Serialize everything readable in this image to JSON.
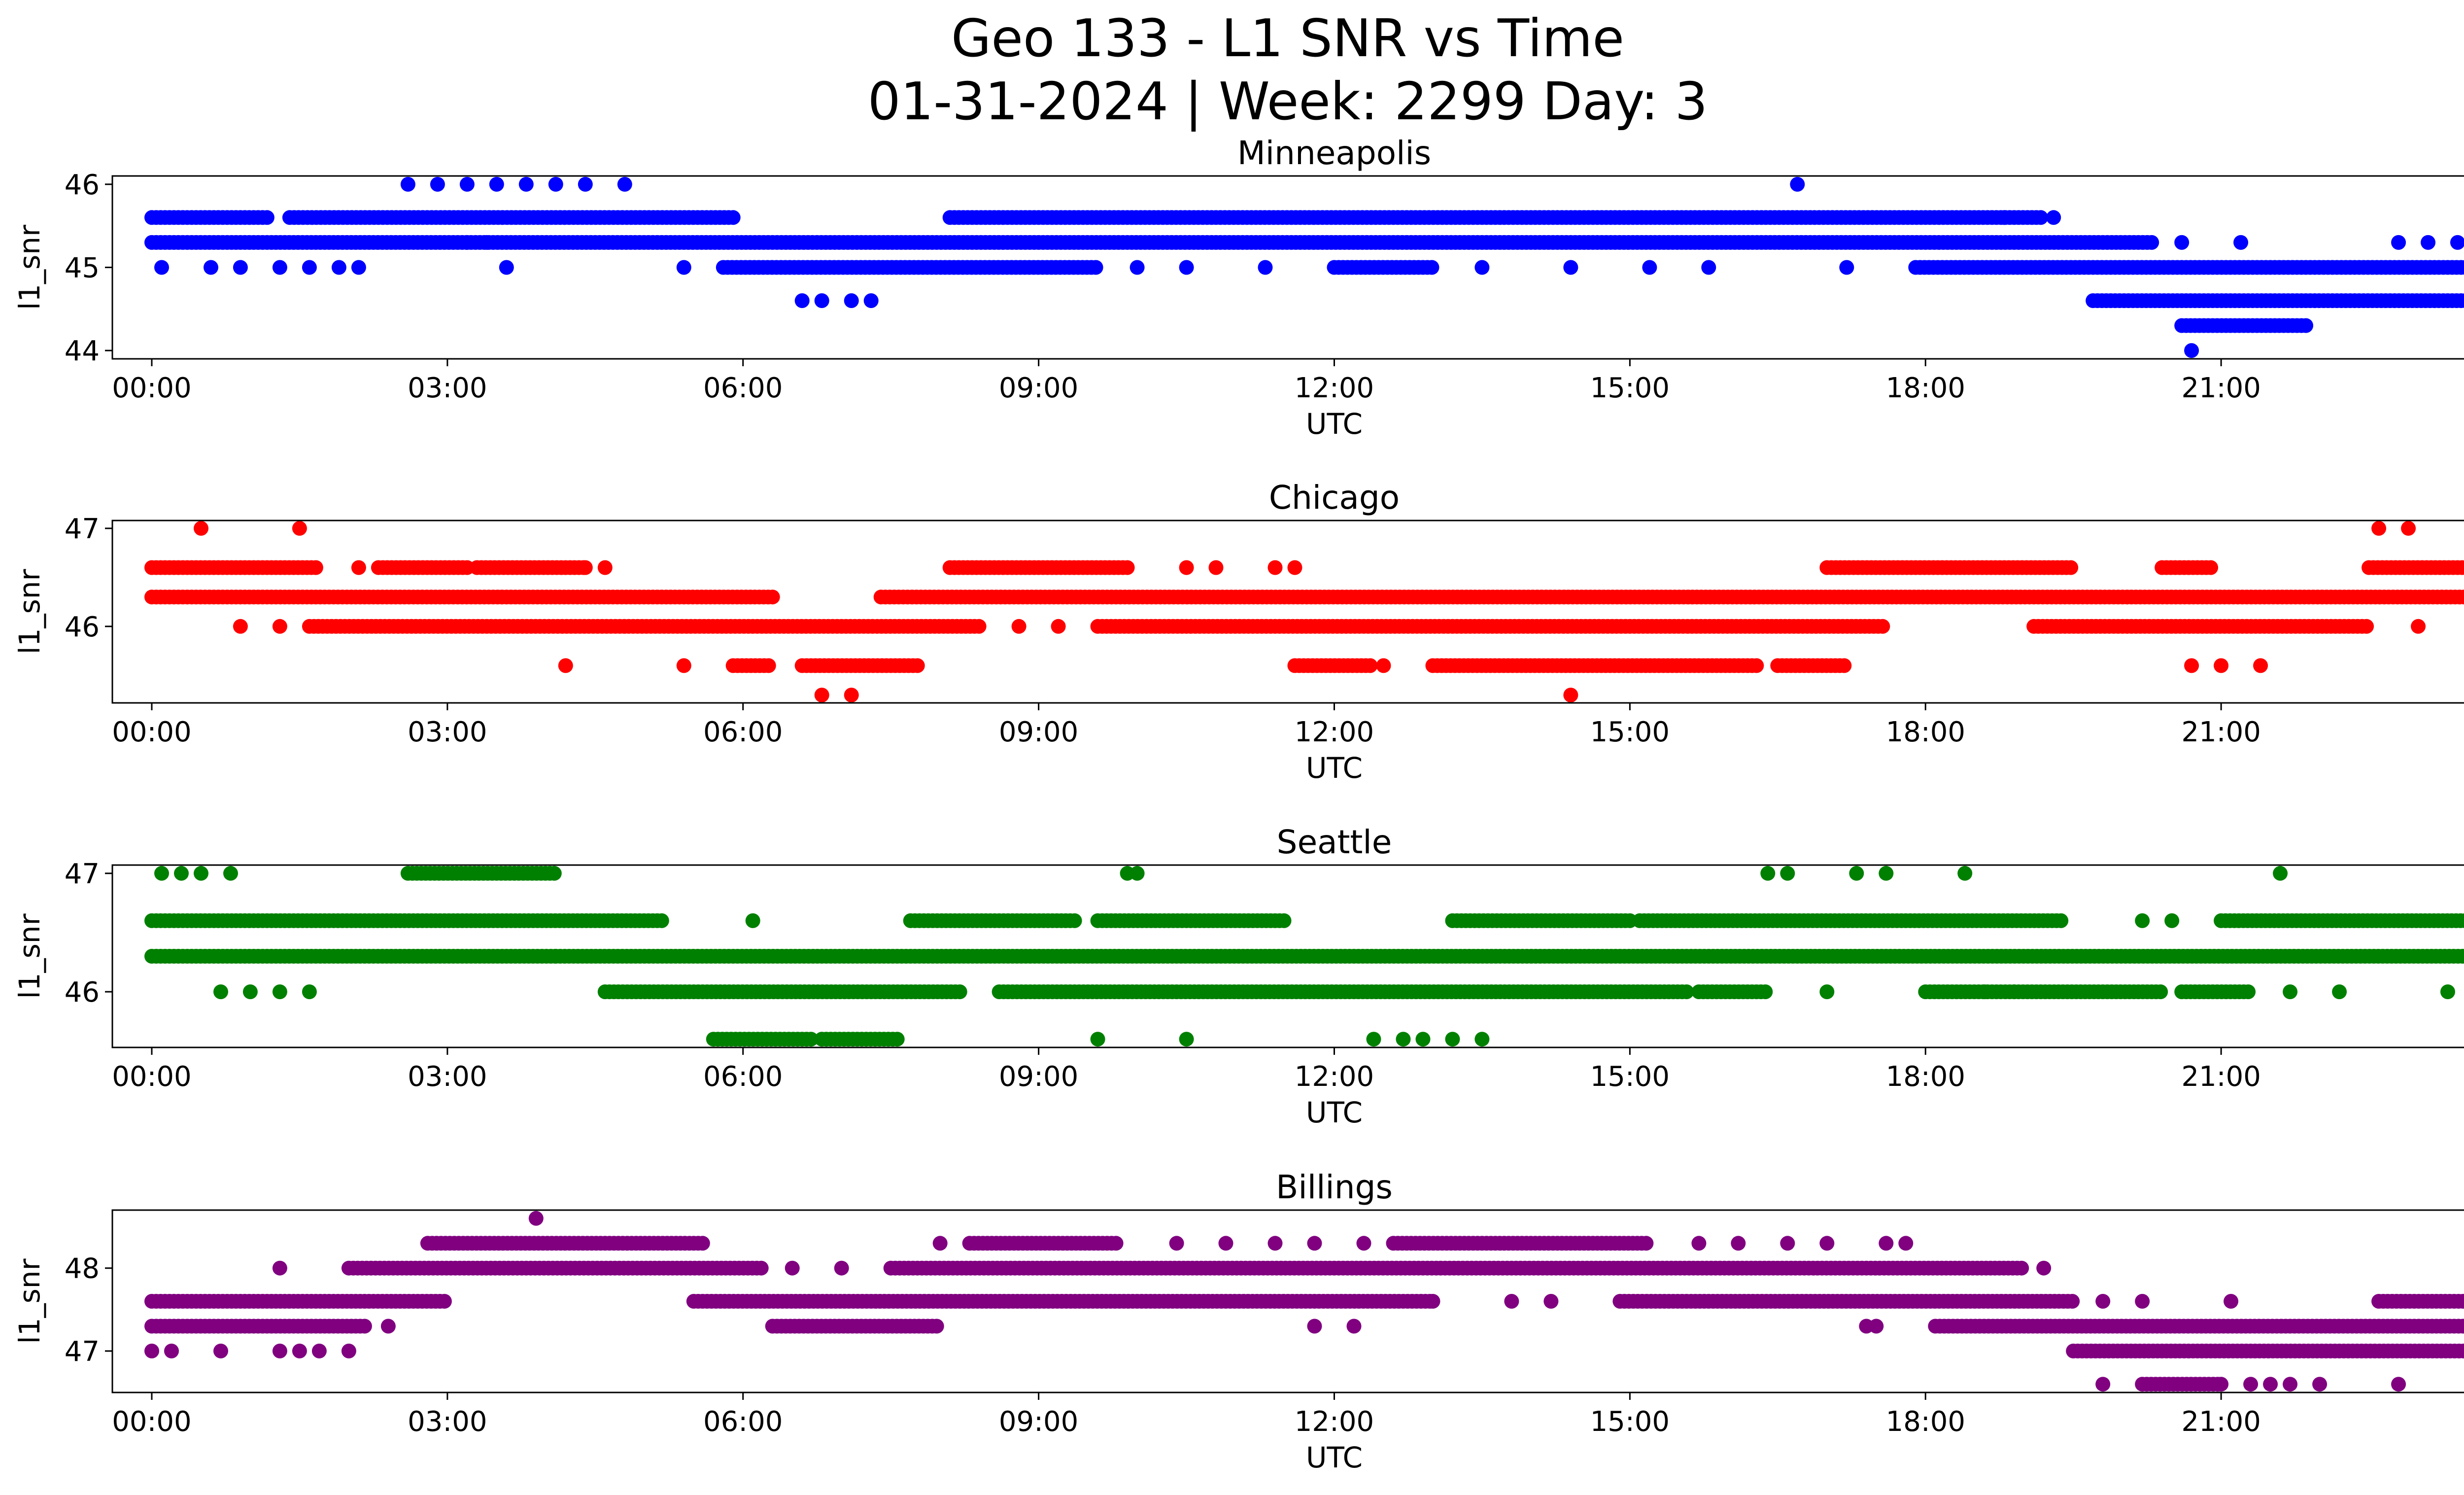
{
  "title": {
    "line1": "Geo 133 - L1 SNR vs Time",
    "line2": "01-31-2024 | Week: 2299 Day: 3"
  },
  "chart_data": [
    {
      "type": "scatter",
      "title": "Minneapolis",
      "xlabel": "UTC",
      "ylabel": "l1_snr",
      "color": "#0000ff",
      "xlim": [
        -0.4,
        24.4
      ],
      "ylim": [
        43.9,
        46.1
      ],
      "yticks": [
        44,
        45,
        46
      ],
      "xticks": [
        "00:00",
        "03:00",
        "06:00",
        "09:00",
        "12:00",
        "15:00",
        "18:00",
        "21:00",
        "00:00"
      ],
      "dense_runs": [
        {
          "y": 45.6,
          "ranges": [
            [
              0.0,
              1.2
            ],
            [
              1.4,
              5.9
            ],
            [
              8.1,
              19.2
            ]
          ]
        },
        {
          "y": 45.3,
          "ranges": [
            [
              0.0,
              20.3
            ]
          ]
        },
        {
          "y": 45.0,
          "ranges": [
            [
              5.8,
              9.6
            ],
            [
              12.0,
              13.0
            ],
            [
              17.9,
              24.0
            ]
          ]
        },
        {
          "y": 44.6,
          "ranges": [
            [
              19.7,
              24.0
            ]
          ]
        },
        {
          "y": 44.3,
          "ranges": [
            [
              20.6,
              21.9
            ]
          ]
        }
      ],
      "points": [
        {
          "x": 2.6,
          "y": 46.0
        },
        {
          "x": 2.9,
          "y": 46.0
        },
        {
          "x": 3.2,
          "y": 46.0
        },
        {
          "x": 3.5,
          "y": 46.0
        },
        {
          "x": 3.8,
          "y": 46.0
        },
        {
          "x": 4.1,
          "y": 46.0
        },
        {
          "x": 4.4,
          "y": 46.0
        },
        {
          "x": 4.8,
          "y": 46.0
        },
        {
          "x": 16.7,
          "y": 46.0
        },
        {
          "x": 0.1,
          "y": 45.0
        },
        {
          "x": 0.6,
          "y": 45.0
        },
        {
          "x": 0.9,
          "y": 45.0
        },
        {
          "x": 1.3,
          "y": 45.0
        },
        {
          "x": 1.6,
          "y": 45.0
        },
        {
          "x": 1.9,
          "y": 45.0
        },
        {
          "x": 2.1,
          "y": 45.0
        },
        {
          "x": 3.6,
          "y": 45.0
        },
        {
          "x": 5.4,
          "y": 45.0
        },
        {
          "x": 10.0,
          "y": 45.0
        },
        {
          "x": 10.5,
          "y": 45.0
        },
        {
          "x": 11.3,
          "y": 45.0
        },
        {
          "x": 13.5,
          "y": 45.0
        },
        {
          "x": 14.4,
          "y": 45.0
        },
        {
          "x": 15.2,
          "y": 45.0
        },
        {
          "x": 15.8,
          "y": 45.0
        },
        {
          "x": 17.2,
          "y": 45.0
        },
        {
          "x": 6.6,
          "y": 44.6
        },
        {
          "x": 6.8,
          "y": 44.6
        },
        {
          "x": 7.1,
          "y": 44.6
        },
        {
          "x": 7.3,
          "y": 44.6
        },
        {
          "x": 3.2,
          "y": 45.3
        },
        {
          "x": 3.4,
          "y": 45.3
        },
        {
          "x": 19.3,
          "y": 45.6
        },
        {
          "x": 18.8,
          "y": 45.6
        },
        {
          "x": 20.6,
          "y": 45.3
        },
        {
          "x": 21.2,
          "y": 45.3
        },
        {
          "x": 22.8,
          "y": 45.3
        },
        {
          "x": 23.1,
          "y": 45.3
        },
        {
          "x": 23.4,
          "y": 45.3
        },
        {
          "x": 23.7,
          "y": 45.3
        },
        {
          "x": 20.7,
          "y": 44.0
        }
      ]
    },
    {
      "type": "scatter",
      "title": "Chicago",
      "xlabel": "UTC",
      "ylabel": "l1_snr",
      "color": "#ff0000",
      "xlim": [
        -0.4,
        24.4
      ],
      "ylim": [
        45.22,
        47.08
      ],
      "yticks": [
        46,
        47
      ],
      "xticks": [
        "00:00",
        "03:00",
        "06:00",
        "09:00",
        "12:00",
        "15:00",
        "18:00",
        "21:00",
        "00:00"
      ],
      "dense_runs": [
        {
          "y": 46.6,
          "ranges": [
            [
              0.0,
              1.7
            ],
            [
              2.3,
              3.2
            ],
            [
              3.3,
              4.4
            ],
            [
              8.1,
              9.9
            ],
            [
              17.0,
              19.5
            ],
            [
              20.4,
              20.9
            ],
            [
              22.5,
              24.0
            ]
          ]
        },
        {
          "y": 46.3,
          "ranges": [
            [
              0.0,
              6.3
            ],
            [
              7.4,
              24.0
            ]
          ]
        },
        {
          "y": 46.0,
          "ranges": [
            [
              1.6,
              8.4
            ],
            [
              9.6,
              17.6
            ],
            [
              19.1,
              22.5
            ]
          ]
        },
        {
          "y": 45.6,
          "ranges": [
            [
              5.9,
              6.3
            ],
            [
              6.6,
              7.8
            ],
            [
              11.6,
              12.4
            ],
            [
              13.0,
              16.3
            ],
            [
              16.5,
              17.2
            ]
          ]
        }
      ],
      "points": [
        {
          "x": 0.5,
          "y": 47.0
        },
        {
          "x": 1.5,
          "y": 47.0
        },
        {
          "x": 22.6,
          "y": 47.0
        },
        {
          "x": 22.9,
          "y": 47.0
        },
        {
          "x": 23.9,
          "y": 47.0
        },
        {
          "x": 24.0,
          "y": 47.0
        },
        {
          "x": 0.9,
          "y": 46.0
        },
        {
          "x": 1.3,
          "y": 46.0
        },
        {
          "x": 23.0,
          "y": 46.0
        },
        {
          "x": 8.8,
          "y": 46.0
        },
        {
          "x": 9.2,
          "y": 46.0
        },
        {
          "x": 2.1,
          "y": 46.6
        },
        {
          "x": 4.6,
          "y": 46.6
        },
        {
          "x": 4.4,
          "y": 46.6
        },
        {
          "x": 10.5,
          "y": 46.6
        },
        {
          "x": 10.8,
          "y": 46.6
        },
        {
          "x": 11.4,
          "y": 46.6
        },
        {
          "x": 11.6,
          "y": 46.6
        },
        {
          "x": 4.2,
          "y": 45.6
        },
        {
          "x": 5.4,
          "y": 45.6
        },
        {
          "x": 12.5,
          "y": 45.6
        },
        {
          "x": 20.7,
          "y": 45.6
        },
        {
          "x": 21.0,
          "y": 45.6
        },
        {
          "x": 21.4,
          "y": 45.6
        },
        {
          "x": 6.8,
          "y": 45.3
        },
        {
          "x": 7.1,
          "y": 45.3
        },
        {
          "x": 14.4,
          "y": 45.3
        }
      ]
    },
    {
      "type": "scatter",
      "title": "Seattle",
      "xlabel": "UTC",
      "ylabel": "l1_snr",
      "color": "#008000",
      "xlim": [
        -0.4,
        24.4
      ],
      "ylim": [
        45.53,
        47.07
      ],
      "yticks": [
        46,
        47
      ],
      "xticks": [
        "00:00",
        "03:00",
        "06:00",
        "09:00",
        "12:00",
        "15:00",
        "18:00",
        "21:00",
        "00:00"
      ],
      "dense_runs": [
        {
          "y": 46.6,
          "ranges": [
            [
              0.0,
              5.2
            ],
            [
              7.7,
              9.4
            ],
            [
              9.6,
              11.5
            ],
            [
              13.2,
              15.0
            ],
            [
              15.1,
              19.4
            ],
            [
              21.0,
              24.0
            ]
          ]
        },
        {
          "y": 46.3,
          "ranges": [
            [
              0.0,
              4.1
            ],
            [
              4.1,
              24.0
            ]
          ]
        },
        {
          "y": 46.0,
          "ranges": [
            [
              4.6,
              8.2
            ],
            [
              8.6,
              15.6
            ],
            [
              15.7,
              16.4
            ],
            [
              18.0,
              20.4
            ],
            [
              20.6,
              21.3
            ]
          ]
        },
        {
          "y": 45.6,
          "ranges": [
            [
              5.7,
              6.7
            ],
            [
              6.8,
              7.6
            ]
          ]
        },
        {
          "y": 47.0,
          "ranges": [
            [
              2.6,
              4.1
            ]
          ]
        }
      ],
      "points": [
        {
          "x": 0.1,
          "y": 47.0
        },
        {
          "x": 0.3,
          "y": 47.0
        },
        {
          "x": 0.5,
          "y": 47.0
        },
        {
          "x": 0.8,
          "y": 47.0
        },
        {
          "x": 9.9,
          "y": 47.0
        },
        {
          "x": 10.0,
          "y": 47.0
        },
        {
          "x": 16.4,
          "y": 47.0
        },
        {
          "x": 16.6,
          "y": 47.0
        },
        {
          "x": 17.3,
          "y": 47.0
        },
        {
          "x": 17.6,
          "y": 47.0
        },
        {
          "x": 18.4,
          "y": 47.0
        },
        {
          "x": 21.6,
          "y": 47.0
        },
        {
          "x": 0.7,
          "y": 46.0
        },
        {
          "x": 1.0,
          "y": 46.0
        },
        {
          "x": 1.3,
          "y": 46.0
        },
        {
          "x": 1.6,
          "y": 46.0
        },
        {
          "x": 17.0,
          "y": 46.0
        },
        {
          "x": 18.6,
          "y": 46.0
        },
        {
          "x": 18.9,
          "y": 46.0
        },
        {
          "x": 21.7,
          "y": 46.0
        },
        {
          "x": 22.2,
          "y": 46.0
        },
        {
          "x": 23.3,
          "y": 46.0
        },
        {
          "x": 23.7,
          "y": 46.0
        },
        {
          "x": 24.0,
          "y": 46.0
        },
        {
          "x": 6.1,
          "y": 46.6
        },
        {
          "x": 20.2,
          "y": 46.6
        },
        {
          "x": 20.5,
          "y": 46.6
        },
        {
          "x": 9.6,
          "y": 45.6
        },
        {
          "x": 10.5,
          "y": 45.6
        },
        {
          "x": 12.4,
          "y": 45.6
        },
        {
          "x": 12.7,
          "y": 45.6
        },
        {
          "x": 12.9,
          "y": 45.6
        },
        {
          "x": 13.2,
          "y": 45.6
        },
        {
          "x": 13.5,
          "y": 45.6
        }
      ]
    },
    {
      "type": "scatter",
      "title": "Billings",
      "xlabel": "UTC",
      "ylabel": "l1_snr",
      "color": "#800080",
      "xlim": [
        -0.4,
        24.4
      ],
      "ylim": [
        46.5,
        48.7
      ],
      "yticks": [
        47,
        48
      ],
      "xticks": [
        "00:00",
        "03:00",
        "06:00",
        "09:00",
        "12:00",
        "15:00",
        "18:00",
        "21:00",
        "00:00"
      ],
      "dense_runs": [
        {
          "y": 48.3,
          "ranges": [
            [
              2.8,
              5.6
            ],
            [
              8.3,
              9.8
            ],
            [
              12.6,
              15.2
            ]
          ]
        },
        {
          "y": 48.0,
          "ranges": [
            [
              2.0,
              6.2
            ],
            [
              7.5,
              19.0
            ]
          ]
        },
        {
          "y": 47.6,
          "ranges": [
            [
              0.0,
              3.0
            ],
            [
              5.5,
              13.0
            ],
            [
              14.9,
              19.5
            ],
            [
              22.6,
              24.0
            ]
          ]
        },
        {
          "y": 47.3,
          "ranges": [
            [
              0.0,
              2.2
            ],
            [
              6.3,
              8.0
            ],
            [
              18.1,
              24.0
            ]
          ]
        },
        {
          "y": 47.0,
          "ranges": [
            [
              19.5,
              23.8
            ]
          ]
        },
        {
          "y": 46.6,
          "ranges": [
            [
              20.2,
              21.0
            ]
          ]
        }
      ],
      "points": [
        {
          "x": 3.9,
          "y": 48.6
        },
        {
          "x": 1.3,
          "y": 48.0
        },
        {
          "x": 6.5,
          "y": 48.0
        },
        {
          "x": 7.0,
          "y": 48.0
        },
        {
          "x": 19.2,
          "y": 48.0
        },
        {
          "x": 8.0,
          "y": 48.3
        },
        {
          "x": 10.4,
          "y": 48.3
        },
        {
          "x": 10.9,
          "y": 48.3
        },
        {
          "x": 11.4,
          "y": 48.3
        },
        {
          "x": 11.8,
          "y": 48.3
        },
        {
          "x": 12.3,
          "y": 48.3
        },
        {
          "x": 15.7,
          "y": 48.3
        },
        {
          "x": 16.1,
          "y": 48.3
        },
        {
          "x": 16.6,
          "y": 48.3
        },
        {
          "x": 17.0,
          "y": 48.3
        },
        {
          "x": 17.6,
          "y": 48.3
        },
        {
          "x": 17.8,
          "y": 48.3
        },
        {
          "x": 13.0,
          "y": 47.6
        },
        {
          "x": 13.8,
          "y": 47.6
        },
        {
          "x": 14.2,
          "y": 47.6
        },
        {
          "x": 19.8,
          "y": 47.6
        },
        {
          "x": 20.2,
          "y": 47.6
        },
        {
          "x": 21.1,
          "y": 47.6
        },
        {
          "x": 2.4,
          "y": 47.3
        },
        {
          "x": 11.8,
          "y": 47.3
        },
        {
          "x": 12.2,
          "y": 47.3
        },
        {
          "x": 17.4,
          "y": 47.3
        },
        {
          "x": 17.5,
          "y": 47.3
        },
        {
          "x": 0.0,
          "y": 47.0
        },
        {
          "x": 0.2,
          "y": 47.0
        },
        {
          "x": 0.7,
          "y": 47.0
        },
        {
          "x": 1.3,
          "y": 47.0
        },
        {
          "x": 1.5,
          "y": 47.0
        },
        {
          "x": 1.7,
          "y": 47.0
        },
        {
          "x": 2.0,
          "y": 47.0
        },
        {
          "x": 19.8,
          "y": 46.6
        },
        {
          "x": 21.0,
          "y": 46.6
        },
        {
          "x": 21.3,
          "y": 46.6
        },
        {
          "x": 21.7,
          "y": 46.6
        },
        {
          "x": 22.0,
          "y": 46.6
        },
        {
          "x": 22.8,
          "y": 46.6
        },
        {
          "x": 21.5,
          "y": 46.6
        }
      ]
    }
  ]
}
